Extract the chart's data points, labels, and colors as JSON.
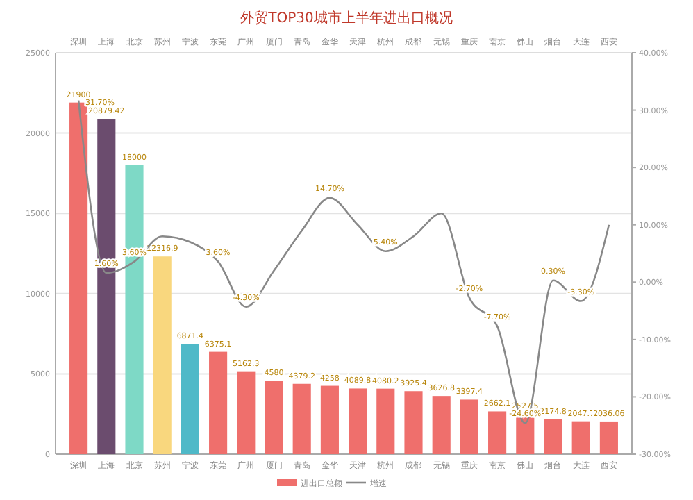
{
  "chart_data": {
    "type": "bar",
    "title": "外贸TOP30城市上半年进出口概况",
    "categories": [
      "深圳",
      "上海",
      "北京",
      "苏州",
      "宁波",
      "东莞",
      "广州",
      "厦门",
      "青岛",
      "金华",
      "天津",
      "杭州",
      "成都",
      "无锡",
      "重庆",
      "南京",
      "佛山",
      "烟台",
      "大连",
      "西安"
    ],
    "series": [
      {
        "name": "进出口总额",
        "color": "#ef6f6c",
        "colors": [
          "#ef6f6c",
          "#6b4c6e",
          "#7ed9c6",
          "#f9d77e",
          "#4fb9c8",
          "#ef6f6c",
          "#ef6f6c",
          "#ef6f6c",
          "#ef6f6c",
          "#ef6f6c",
          "#ef6f6c",
          "#ef6f6c",
          "#ef6f6c",
          "#ef6f6c",
          "#ef6f6c",
          "#ef6f6c",
          "#ef6f6c",
          "#ef6f6c",
          "#ef6f6c",
          "#ef6f6c"
        ],
        "values": [
          21900,
          20879.42,
          18000,
          12316.9,
          6871.4,
          6375.1,
          5162.3,
          4580,
          4379.2,
          4258,
          4089.8,
          4080.2,
          3925.4,
          3626.8,
          3397.4,
          2662.1,
          2527.5,
          2174.8,
          2047.7,
          2036.06
        ],
        "value_labels": [
          "21900",
          "20879.42",
          "18000",
          "12316.9",
          "6871.4",
          "6375.1",
          "5162.3",
          "4580",
          "4379.2",
          "4258",
          "4089.8",
          "4080.2",
          "3925.4",
          "3626.8",
          "3397.4",
          "2662.1",
          "2527.5",
          "2174.8",
          "2047.7",
          "2036.06"
        ]
      },
      {
        "name": "增速",
        "type": "line",
        "axis": "y2",
        "color": "#888888",
        "values": [
          31.7,
          1.6,
          3.6,
          8,
          7,
          3.6,
          -4.3,
          2,
          9,
          14.7,
          10,
          5.4,
          8,
          12,
          -2.7,
          -7.7,
          -24.6,
          0.3,
          -3.3,
          10
        ],
        "value_labels": [
          "31.70%",
          "1.60%",
          "3.60%",
          null,
          null,
          "3.60%",
          "-4.30%",
          null,
          null,
          "14.70%",
          null,
          "5.40%",
          null,
          null,
          "-2.70%",
          "-7.70%",
          "-24.60%",
          "0.30%",
          "-3.30%",
          null
        ]
      }
    ],
    "ylim": [
      0,
      25000
    ],
    "yticks": [
      0,
      5000,
      10000,
      15000,
      20000,
      25000
    ],
    "y2lim": [
      -30,
      40
    ],
    "y2ticks": [
      {
        "value": -30,
        "label": "-30.00%"
      },
      {
        "value": -20,
        "label": "-20.00%"
      },
      {
        "value": -10,
        "label": "-10.00%"
      },
      {
        "value": 0,
        "label": "0.00%"
      },
      {
        "value": 10,
        "label": "10.00%"
      },
      {
        "value": 20,
        "label": "20.00%"
      },
      {
        "value": 30,
        "label": "30.00%"
      },
      {
        "value": 40,
        "label": "40.00%"
      }
    ],
    "grid": "y",
    "legend": "bottom",
    "marker": "none",
    "line_style": "solid"
  }
}
